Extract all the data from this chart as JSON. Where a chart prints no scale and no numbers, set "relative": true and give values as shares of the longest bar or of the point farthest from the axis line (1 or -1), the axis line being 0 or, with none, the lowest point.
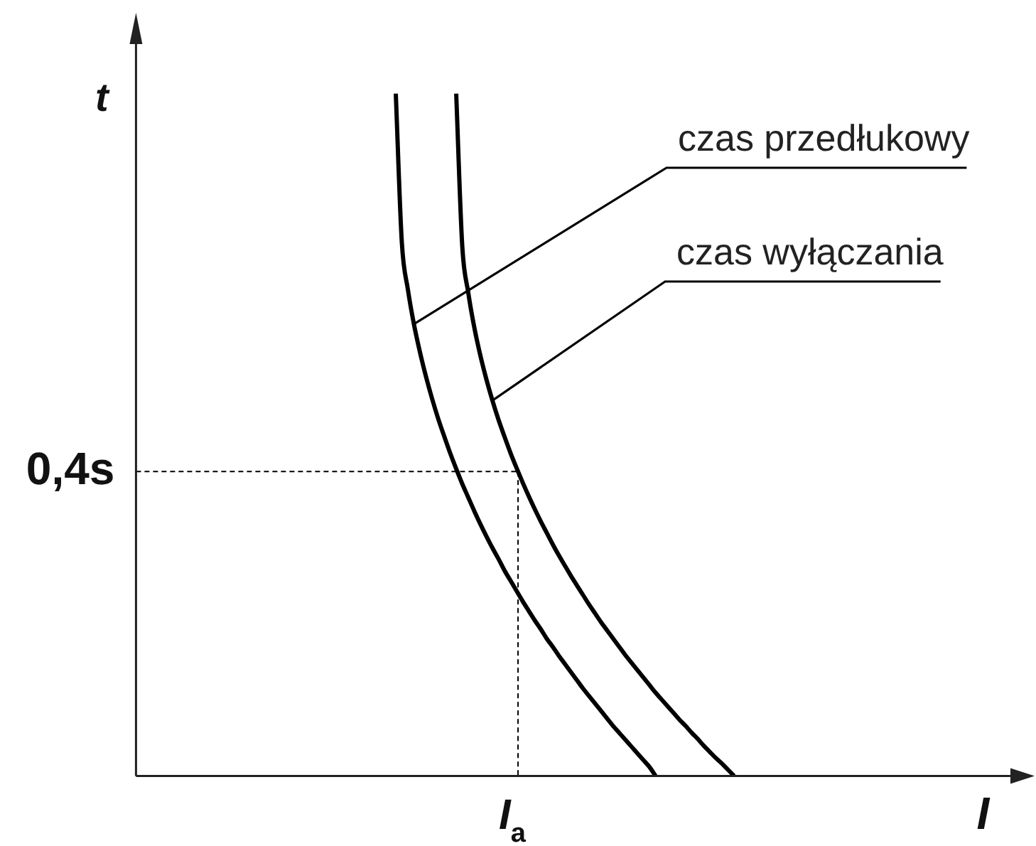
{
  "chart_data": {
    "type": "line",
    "relative": true,
    "xlabel": "I",
    "ylabel": "t",
    "categories": [
      null,
      null,
      null,
      null,
      null,
      null,
      null,
      null,
      null,
      null,
      null,
      null,
      null,
      null,
      null,
      null,
      null,
      null,
      null,
      null,
      null,
      null,
      null,
      null,
      null,
      null,
      null,
      null,
      null,
      null,
      null,
      null,
      null,
      null,
      null,
      null,
      null,
      null,
      null,
      null,
      null,
      null,
      null,
      null,
      null,
      null,
      null,
      null,
      null,
      null,
      null,
      null,
      null,
      null,
      null,
      null,
      null,
      null,
      null,
      null,
      null,
      null,
      null,
      null,
      null,
      null,
      null,
      null,
      null,
      null,
      null,
      null,
      null,
      null,
      null,
      null,
      null,
      null,
      null,
      null,
      null,
      null,
      null,
      null,
      null,
      null,
      null,
      null,
      null,
      null,
      null,
      null,
      null,
      null,
      null,
      null,
      null,
      null,
      null,
      null,
      null,
      null,
      null,
      null,
      null,
      null,
      null,
      null,
      null,
      null,
      null,
      null,
      null,
      null,
      null,
      null,
      null,
      null,
      null,
      null,
      null,
      null,
      null,
      null,
      null,
      null,
      null,
      null,
      null,
      null,
      null,
      null,
      null,
      null,
      null,
      null,
      null,
      null,
      null,
      null,
      null,
      null,
      null,
      null,
      null,
      null
    ],
    "series": [
      {
        "name": "czas przedłukowy",
        "color": "#000000",
        "values": [
          null,
          null,
          null,
          null,
          null,
          null,
          null,
          null,
          null,
          null,
          null,
          null,
          null,
          null,
          null,
          null,
          null,
          null,
          null,
          null,
          null,
          null,
          null,
          null,
          null,
          null,
          null,
          null,
          null,
          null,
          null,
          null,
          null,
          null,
          null,
          null,
          null,
          null,
          null,
          null,
          null,
          null,
          null,
          1,
          0.782,
          0.713,
          0.662,
          0.621,
          0.585,
          0.553,
          0.524,
          0.498,
          0.473,
          0.45,
          0.428,
          0.408,
          0.388,
          0.369,
          0.351,
          0.334,
          0.318,
          0.301,
          0.286,
          0.271,
          0.256,
          0.242,
          0.228,
          0.215,
          0.201,
          0.189,
          0.176,
          0.164,
          0.152,
          0.14,
          0.128,
          0.117,
          0.106,
          0.095,
          0.084,
          0.073,
          0.063,
          0.053,
          0.043,
          0.033,
          0.023,
          0.013,
          0,
          null,
          null,
          null,
          null,
          null,
          null,
          null,
          null,
          null,
          null,
          null,
          null,
          null,
          null,
          null,
          null,
          null,
          null,
          null,
          null,
          null,
          null,
          null,
          null,
          null,
          null,
          null,
          null,
          null,
          null,
          null,
          null,
          null,
          null,
          null,
          null,
          null,
          null,
          null,
          null,
          null,
          null,
          null,
          null,
          null,
          null,
          null,
          null,
          null,
          null,
          null,
          null,
          null,
          null,
          null,
          null,
          null,
          null,
          null
        ]
      },
      {
        "name": "czas wyłączania",
        "color": "#000000",
        "values": [
          null,
          null,
          null,
          null,
          null,
          null,
          null,
          null,
          null,
          null,
          null,
          null,
          null,
          null,
          null,
          null,
          null,
          null,
          null,
          null,
          null,
          null,
          null,
          null,
          null,
          null,
          null,
          null,
          null,
          null,
          null,
          null,
          null,
          null,
          null,
          null,
          null,
          null,
          null,
          null,
          null,
          null,
          null,
          null,
          null,
          null,
          null,
          null,
          null,
          null,
          null,
          null,
          null,
          1,
          0.777,
          0.708,
          0.657,
          0.616,
          0.581,
          0.55,
          0.522,
          0.497,
          0.473,
          0.451,
          0.43,
          0.41,
          0.391,
          0.373,
          0.356,
          0.339,
          0.323,
          0.308,
          0.293,
          0.279,
          0.265,
          0.251,
          0.238,
          0.225,
          0.213,
          0.201,
          0.189,
          0.177,
          0.166,
          0.155,
          0.144,
          0.133,
          0.122,
          0.112,
          0.102,
          0.092,
          0.082,
          0.073,
          0.063,
          0.054,
          0.044,
          0.035,
          0.026,
          0.018,
          0.009,
          0,
          null,
          null,
          null,
          null,
          null,
          null,
          null,
          null,
          null,
          null,
          null,
          null,
          null,
          null,
          null,
          null,
          null,
          null,
          null,
          null,
          null,
          null,
          null,
          null,
          null,
          null,
          null,
          null,
          null,
          null,
          null,
          null,
          null,
          null,
          null,
          null,
          null,
          null,
          null,
          null,
          null,
          null,
          null,
          null,
          null,
          null
        ]
      }
    ],
    "ref_lines": [
      {
        "axis": "y",
        "value": 0.446,
        "label": "0,4s",
        "line_style": "dashed",
        "color": "#000000"
      }
    ],
    "annotations": [
      {
        "text": "I$_{a}$",
        "y": 0.446
      }
    ]
  }
}
